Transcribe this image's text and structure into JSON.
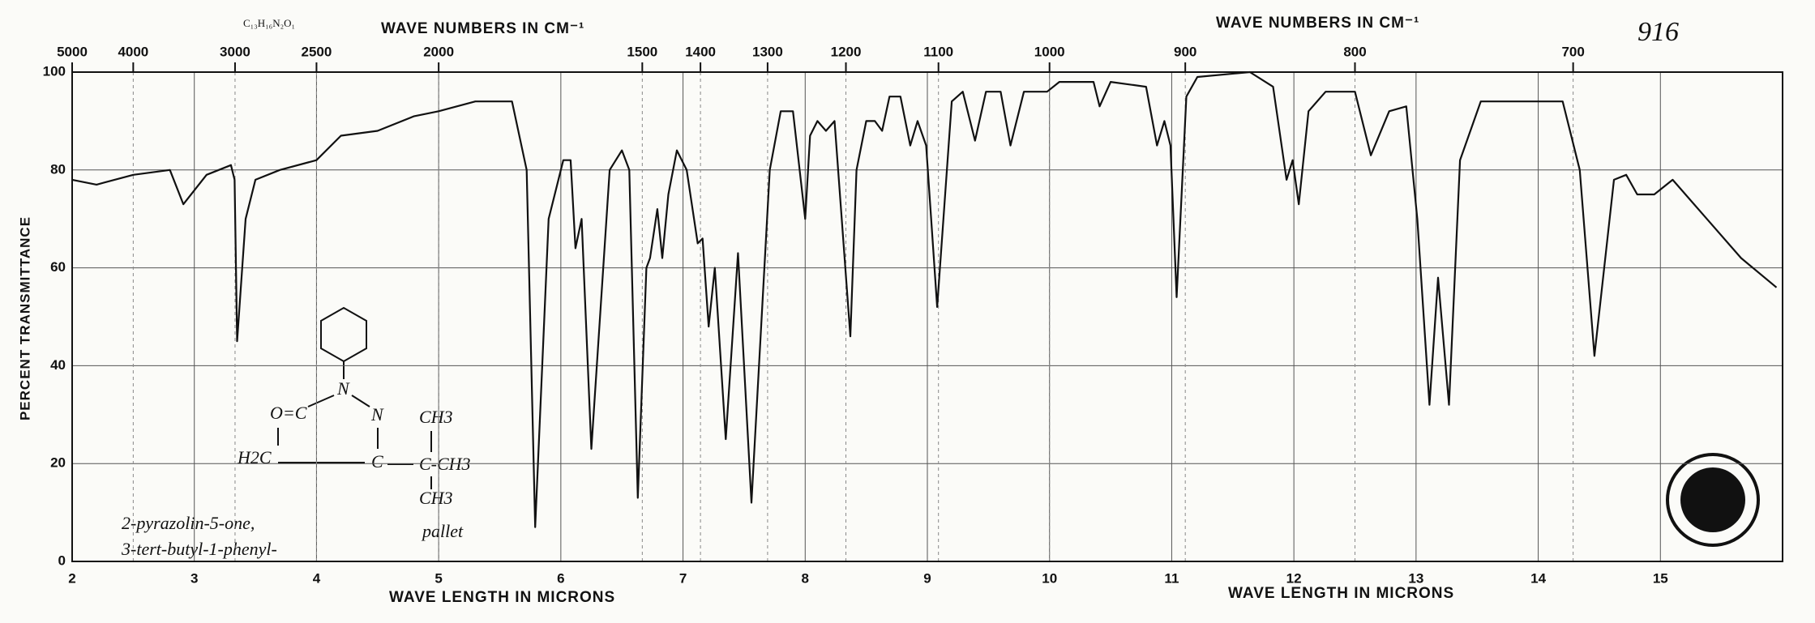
{
  "chart_data": {
    "type": "line",
    "note_number": "916",
    "formula": "C₁₃H₁₆N₂O₁",
    "top_axis_label": "WAVE NUMBERS IN CM⁻¹",
    "x_label": "WAVE LENGTH IN MICRONS",
    "y_label": "PERCENT TRANSMITTANCE",
    "compound_name": [
      "2-pyrazolin-5-one,",
      "3-tert-butyl-1-phenyl-"
    ],
    "sample_note": "pallet",
    "structure_labels": [
      "N",
      "O=C",
      "N",
      "CH3",
      "H2C",
      "C",
      "C-CH3",
      "CH3"
    ],
    "color": "#111111",
    "xlim": [
      2,
      16
    ],
    "xticks": [
      2,
      3,
      4,
      5,
      6,
      7,
      8,
      9,
      10,
      11,
      12,
      13,
      14,
      15
    ],
    "ylim": [
      0,
      100
    ],
    "yticks": [
      0,
      20,
      40,
      60,
      80,
      100
    ],
    "x2ticks": [
      5000,
      4000,
      3000,
      2500,
      2000,
      1500,
      1400,
      1300,
      1200,
      1100,
      1000,
      900,
      800,
      700
    ],
    "grid": true,
    "x": [
      2.0,
      2.2,
      2.5,
      2.8,
      2.91,
      3.1,
      3.3,
      3.33,
      3.35,
      3.42,
      3.5,
      3.7,
      4.0,
      4.2,
      4.5,
      4.8,
      5.0,
      5.3,
      5.6,
      5.72,
      5.79,
      5.9,
      6.02,
      6.08,
      6.12,
      6.17,
      6.25,
      6.4,
      6.5,
      6.56,
      6.63,
      6.7,
      6.73,
      6.79,
      6.83,
      6.88,
      6.95,
      7.03,
      7.12,
      7.16,
      7.21,
      7.26,
      7.35,
      7.45,
      7.56,
      7.71,
      7.8,
      7.9,
      8.0,
      8.04,
      8.1,
      8.17,
      8.24,
      8.37,
      8.42,
      8.5,
      8.57,
      8.63,
      8.69,
      8.78,
      8.86,
      8.92,
      8.99,
      9.08,
      9.2,
      9.29,
      9.39,
      9.48,
      9.6,
      9.68,
      9.79,
      9.98,
      10.08,
      10.36,
      10.41,
      10.5,
      10.79,
      10.88,
      10.94,
      10.99,
      11.04,
      11.12,
      11.21,
      11.64,
      11.83,
      11.94,
      11.99,
      12.04,
      12.12,
      12.26,
      12.5,
      12.63,
      12.78,
      12.92,
      13.01,
      13.11,
      13.18,
      13.27,
      13.36,
      13.53,
      14.2,
      14.34,
      14.46,
      14.62,
      14.72,
      14.81,
      14.95,
      15.1,
      15.38,
      15.66,
      15.95
    ],
    "values": [
      78,
      77,
      79,
      80,
      73,
      79,
      81,
      78,
      45,
      70,
      78,
      80,
      82,
      87,
      88,
      91,
      92,
      94,
      94,
      80,
      7,
      70,
      82,
      82,
      64,
      70,
      23,
      80,
      84,
      80,
      13,
      60,
      62,
      72,
      62,
      75,
      84,
      80,
      65,
      66,
      48,
      60,
      25,
      63,
      12,
      80,
      92,
      92,
      70,
      87,
      90,
      88,
      90,
      46,
      80,
      90,
      90,
      88,
      95,
      95,
      85,
      90,
      85,
      52,
      94,
      96,
      86,
      96,
      96,
      85,
      96,
      96,
      98,
      98,
      93,
      98,
      97,
      85,
      90,
      85,
      54,
      95,
      99,
      100,
      97,
      78,
      82,
      73,
      92,
      96,
      96,
      83,
      92,
      93,
      70,
      32,
      58,
      32,
      82,
      94,
      94,
      80,
      42,
      78,
      79,
      75,
      75,
      78,
      70,
      62,
      56
    ]
  }
}
